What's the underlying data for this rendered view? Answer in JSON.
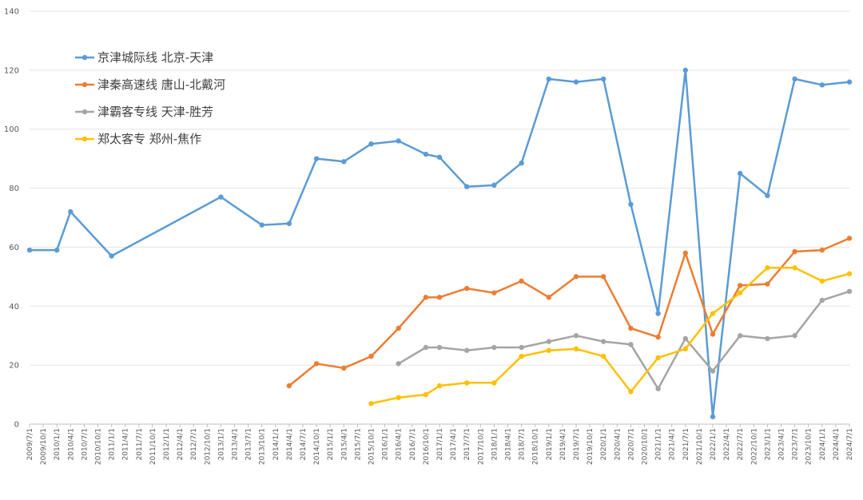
{
  "chart_data": {
    "type": "line",
    "ylim": [
      0,
      140
    ],
    "yticks": [
      0,
      20,
      40,
      60,
      80,
      100,
      120,
      140
    ],
    "grid": true,
    "legend": "top-left",
    "categories": [
      "2009/7/1",
      "2009/10/1",
      "2010/1/1",
      "2010/4/1",
      "2010/7/1",
      "2010/10/1",
      "2011/1/1",
      "2011/4/1",
      "2011/7/1",
      "2011/10/1",
      "2012/1/1",
      "2012/4/1",
      "2012/7/1",
      "2012/10/1",
      "2013/1/1",
      "2013/4/1",
      "2013/7/1",
      "2013/10/1",
      "2014/1/1",
      "2014/4/1",
      "2014/7/1",
      "2014/10/1",
      "2015/1/1",
      "2015/4/1",
      "2015/7/1",
      "2015/10/1",
      "2016/1/1",
      "2016/4/1",
      "2016/7/1",
      "2016/10/1",
      "2017/1/1",
      "2017/4/1",
      "2017/7/1",
      "2017/10/1",
      "2018/1/1",
      "2018/4/1",
      "2018/7/1",
      "2018/10/1",
      "2019/1/1",
      "2019/4/1",
      "2019/7/1",
      "2019/10/1",
      "2020/1/1",
      "2020/4/1",
      "2020/7/1",
      "2020/10/1",
      "2021/1/1",
      "2021/4/1",
      "2021/7/1",
      "2021/10/1",
      "2022/1/1",
      "2022/4/1",
      "2022/7/1",
      "2022/10/1",
      "2023/1/1",
      "2023/4/1",
      "2023/7/1",
      "2023/10/1",
      "2024/1/1",
      "2024/4/1",
      "2024/7/1"
    ],
    "series": [
      {
        "name": "京津城际线 北京-天津",
        "color": "#5b9bd5",
        "points": [
          [
            "2009/7/1",
            59
          ],
          [
            "2010/1/1",
            59
          ],
          [
            "2010/4/1",
            72
          ],
          [
            "2011/1/1",
            57
          ],
          [
            "2013/1/1",
            77
          ],
          [
            "2013/10/1",
            67.5
          ],
          [
            "2014/4/1",
            68
          ],
          [
            "2014/10/1",
            90
          ],
          [
            "2015/4/1",
            89
          ],
          [
            "2015/10/1",
            95
          ],
          [
            "2016/4/1",
            96
          ],
          [
            "2016/10/1",
            91.5
          ],
          [
            "2017/1/1",
            90.5
          ],
          [
            "2017/7/1",
            80.5
          ],
          [
            "2018/1/1",
            81
          ],
          [
            "2018/7/1",
            88.5
          ],
          [
            "2019/1/1",
            117
          ],
          [
            "2019/7/1",
            116
          ],
          [
            "2020/1/1",
            117
          ],
          [
            "2020/7/1",
            74.5
          ],
          [
            "2021/1/1",
            37.5
          ],
          [
            "2021/7/1",
            120
          ],
          [
            "2022/1/1",
            2.5
          ],
          [
            "2022/7/1",
            85
          ],
          [
            "2023/1/1",
            77.5
          ],
          [
            "2023/7/1",
            117
          ],
          [
            "2024/1/1",
            115
          ],
          [
            "2024/7/1",
            116
          ]
        ]
      },
      {
        "name": "津秦高速线 唐山-北戴河",
        "color": "#ed7d31",
        "points": [
          [
            "2014/4/1",
            13
          ],
          [
            "2014/10/1",
            20.5
          ],
          [
            "2015/4/1",
            19
          ],
          [
            "2015/10/1",
            23
          ],
          [
            "2016/4/1",
            32.5
          ],
          [
            "2016/10/1",
            43
          ],
          [
            "2017/1/1",
            43
          ],
          [
            "2017/7/1",
            46
          ],
          [
            "2018/1/1",
            44.5
          ],
          [
            "2018/7/1",
            48.5
          ],
          [
            "2019/1/1",
            43
          ],
          [
            "2019/7/1",
            50
          ],
          [
            "2020/1/1",
            50
          ],
          [
            "2020/7/1",
            32.5
          ],
          [
            "2021/1/1",
            29.5
          ],
          [
            "2021/7/1",
            58
          ],
          [
            "2022/1/1",
            30.5
          ],
          [
            "2022/7/1",
            47
          ],
          [
            "2023/1/1",
            47.5
          ],
          [
            "2023/7/1",
            58.5
          ],
          [
            "2024/1/1",
            59
          ],
          [
            "2024/7/1",
            63
          ]
        ]
      },
      {
        "name": "津霸客专线 天津-胜芳",
        "color": "#a5a5a5",
        "points": [
          [
            "2016/4/1",
            20.5
          ],
          [
            "2016/10/1",
            26
          ],
          [
            "2017/1/1",
            26
          ],
          [
            "2017/7/1",
            25
          ],
          [
            "2018/1/1",
            26
          ],
          [
            "2018/7/1",
            26
          ],
          [
            "2019/1/1",
            28
          ],
          [
            "2019/7/1",
            30
          ],
          [
            "2020/1/1",
            28
          ],
          [
            "2020/7/1",
            27
          ],
          [
            "2021/1/1",
            12
          ],
          [
            "2021/7/1",
            29
          ],
          [
            "2022/1/1",
            18
          ],
          [
            "2022/7/1",
            30
          ],
          [
            "2023/1/1",
            29
          ],
          [
            "2023/7/1",
            30
          ],
          [
            "2024/1/1",
            42
          ],
          [
            "2024/7/1",
            45
          ]
        ]
      },
      {
        "name": "郑太客专 郑州-焦作",
        "color": "#ffc000",
        "points": [
          [
            "2015/10/1",
            7
          ],
          [
            "2016/4/1",
            9
          ],
          [
            "2016/10/1",
            10
          ],
          [
            "2017/1/1",
            13
          ],
          [
            "2017/7/1",
            14
          ],
          [
            "2018/1/1",
            14
          ],
          [
            "2018/7/1",
            23
          ],
          [
            "2019/1/1",
            25
          ],
          [
            "2019/7/1",
            25.5
          ],
          [
            "2020/1/1",
            23
          ],
          [
            "2020/7/1",
            11
          ],
          [
            "2021/1/1",
            22.5
          ],
          [
            "2021/7/1",
            25.5
          ],
          [
            "2022/1/1",
            37.5
          ],
          [
            "2022/7/1",
            44.5
          ],
          [
            "2023/1/1",
            53
          ],
          [
            "2023/7/1",
            53
          ],
          [
            "2024/1/1",
            48.5
          ],
          [
            "2024/7/1",
            51
          ]
        ]
      }
    ]
  }
}
